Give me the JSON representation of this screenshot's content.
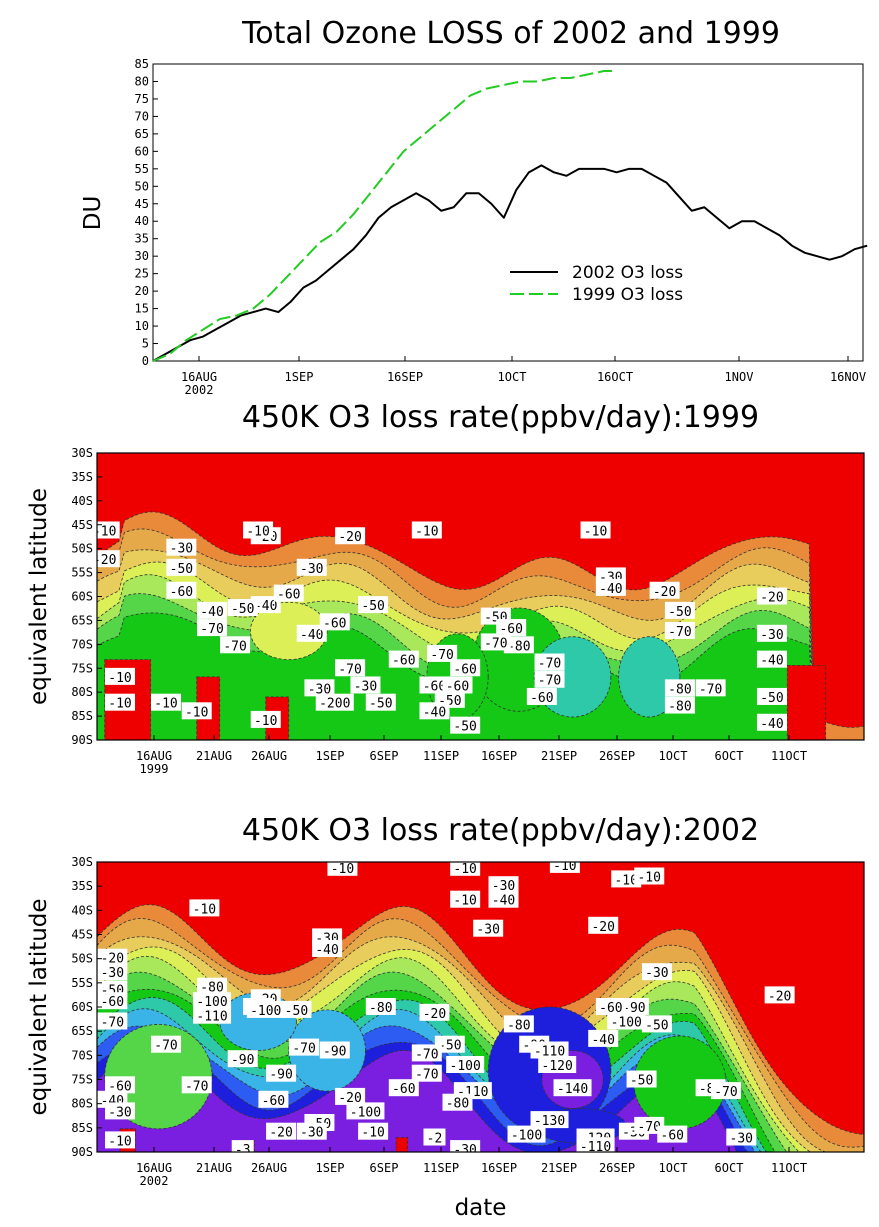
{
  "chart_data": [
    {
      "type": "line",
      "title": "Total Ozone LOSS of 2002 and 1999",
      "ylabel": "DU",
      "ylim": [
        0,
        85
      ],
      "yticks": [
        "0",
        "5",
        "10",
        "15",
        "20",
        "25",
        "30",
        "35",
        "40",
        "45",
        "50",
        "55",
        "60",
        "65",
        "70",
        "75",
        "80",
        "85"
      ],
      "xticks": [
        "16AUG",
        "1SEP",
        "16SEP",
        "1OCT",
        "16OCT",
        "1NOV",
        "16NOV"
      ],
      "xtick_sub": "2002",
      "legend_position": "center-right",
      "series": [
        {
          "name": "2002 O3 loss",
          "style": "solid",
          "color": "#000000",
          "x_day": [
            0,
            3,
            6,
            9,
            12,
            15,
            18,
            21,
            24,
            27,
            30,
            33,
            36,
            39,
            42,
            45,
            48,
            51,
            54,
            57,
            60,
            63,
            66,
            69,
            72,
            75,
            78,
            81,
            84,
            87,
            90,
            93,
            96,
            99,
            102,
            105,
            108,
            111,
            114,
            117,
            120,
            123,
            126,
            129,
            132,
            135,
            138,
            141,
            144,
            147,
            150,
            153,
            156,
            159,
            162,
            165,
            168,
            171
          ],
          "y": [
            0,
            2,
            4,
            6,
            7,
            9,
            11,
            13,
            14,
            15,
            14,
            17,
            21,
            23,
            26,
            29,
            32,
            36,
            41,
            44,
            46,
            48,
            46,
            43,
            44,
            48,
            48,
            45,
            41,
            49,
            54,
            56,
            54,
            53,
            55,
            55,
            55,
            54,
            55,
            55,
            53,
            51,
            47,
            43,
            44,
            41,
            38,
            40,
            40,
            38,
            36,
            33,
            31,
            30,
            29,
            30,
            32,
            33
          ]
        },
        {
          "name": "1999 O3 loss",
          "style": "dashed",
          "color": "#22cc22",
          "x_day": [
            0,
            4,
            8,
            12,
            16,
            20,
            24,
            28,
            32,
            36,
            40,
            44,
            48,
            52,
            56,
            60,
            64,
            68,
            72,
            76,
            80,
            84,
            88,
            92,
            96,
            100,
            104,
            108,
            110
          ],
          "y": [
            0,
            2,
            6,
            9,
            12,
            13,
            15,
            19,
            24,
            29,
            34,
            37,
            42,
            48,
            54,
            60,
            64,
            68,
            72,
            76,
            78,
            79,
            80,
            80,
            81,
            81,
            82,
            83,
            83
          ]
        }
      ]
    },
    {
      "type": "heatmap",
      "title": "450K O3 loss rate(ppbv/day):1999",
      "ylabel": "equivalent latitude",
      "yticks": [
        "30S",
        "35S",
        "40S",
        "45S",
        "50S",
        "55S",
        "60S",
        "65S",
        "70S",
        "75S",
        "80S",
        "85S",
        "90S"
      ],
      "xticks": [
        "16AUG",
        "21AUG",
        "26AUG",
        "1SEP",
        "6SEP",
        "11SEP",
        "16SEP",
        "21SEP",
        "26SEP",
        "1OCT",
        "6OCT",
        "11OCT"
      ],
      "xtick_sub": "1999",
      "contour_labels": [
        "-10",
        "-20",
        "-10",
        "-10",
        "-10",
        "-30",
        "-50",
        "-60",
        "-20",
        "-40",
        "-50",
        "-60",
        "-40",
        "-70",
        "-70",
        "-10",
        "-30",
        "-40",
        "-50",
        "-20",
        "-60",
        "-70",
        "-60",
        "-60",
        "-30",
        "-200",
        "-50",
        "-70",
        "-60",
        "-50",
        "-40",
        "-60",
        "-50",
        "-60",
        "-80",
        "-70",
        "-70",
        "-60",
        "-10",
        "-30",
        "-40",
        "-20",
        "-50",
        "-70",
        "-80",
        "-80",
        "-70",
        "-20",
        "-30",
        "-40",
        "-50",
        "-40",
        "-10",
        "-10",
        "-30",
        "-10",
        "-50",
        "-70"
      ]
    },
    {
      "type": "heatmap",
      "title": "450K O3 loss rate(ppbv/day):2002",
      "ylabel": "equivalent latitude",
      "xlabel": "date",
      "yticks": [
        "30S",
        "35S",
        "40S",
        "45S",
        "50S",
        "55S",
        "60S",
        "65S",
        "70S",
        "75S",
        "80S",
        "85S",
        "90S"
      ],
      "xticks": [
        "16AUG",
        "21AUG",
        "26AUG",
        "1SEP",
        "6SEP",
        "11SEP",
        "16SEP",
        "21SEP",
        "26SEP",
        "1OCT",
        "6OCT",
        "11OCT"
      ],
      "xtick_sub": "2002",
      "contour_labels": [
        "-20",
        "-30",
        "-50",
        "-60",
        "-70",
        "-60",
        "-40",
        "-30",
        "-10",
        "-80",
        "-100",
        "-110",
        "-70",
        "-70",
        "-10",
        "-20",
        "-60",
        "-100",
        "-50",
        "-90",
        "-90",
        "-70",
        "-90",
        "-60",
        "-50",
        "-30",
        "-40",
        "-20",
        "-10",
        "-80",
        "-100",
        "-70",
        "-20",
        "-30",
        "-80",
        "-50",
        "-70",
        "-100",
        "-110",
        "-60",
        "-80",
        "-10",
        "-10",
        "-30",
        "-40",
        "-90",
        "-110",
        "-120",
        "-140",
        "-130",
        "-100",
        "-120",
        "-110",
        "-30",
        "-70",
        "-90",
        "-10",
        "-20",
        "-60",
        "-100",
        "-50",
        "-80",
        "-70",
        "-30",
        "-40",
        "-50",
        "-20",
        "-30",
        "-10",
        "-10",
        "-3",
        "-20",
        "-30",
        "-2",
        "-30",
        "-60",
        "-10"
      ]
    }
  ]
}
